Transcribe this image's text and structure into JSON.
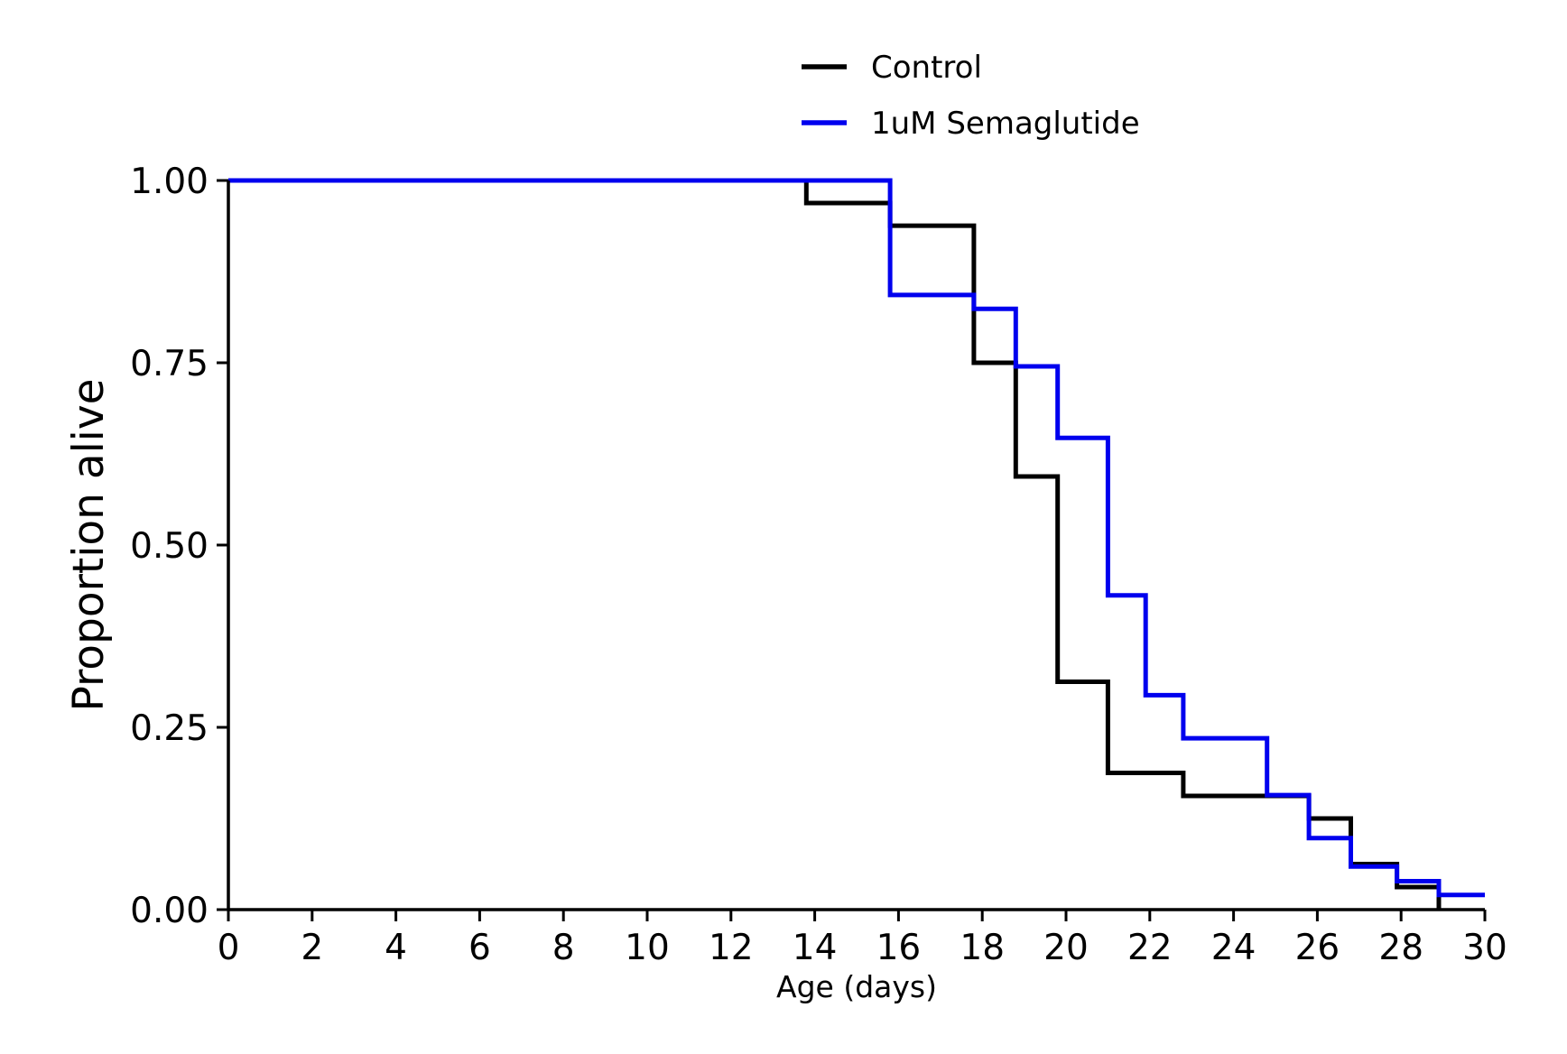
{
  "chart_data": {
    "type": "line",
    "step": true,
    "xlabel": "Age (days)",
    "ylabel": "Proportion alive",
    "xlim": [
      0,
      30
    ],
    "ylim": [
      0,
      1
    ],
    "xticks": [
      0,
      2,
      4,
      6,
      8,
      10,
      12,
      14,
      16,
      18,
      20,
      22,
      24,
      26,
      28,
      30
    ],
    "xtick_labels": [
      "0",
      "2",
      "4",
      "6",
      "8",
      "10",
      "12",
      "14",
      "16",
      "18",
      "20",
      "22",
      "24",
      "26",
      "28",
      "30"
    ],
    "yticks": [
      0,
      0.25,
      0.5,
      0.75,
      1.0
    ],
    "ytick_labels": [
      "0.00",
      "0.25",
      "0.50",
      "0.75",
      "1.00"
    ],
    "grid": false,
    "legend_position": "top-center",
    "series": [
      {
        "name": "Control",
        "color": "#000000",
        "x": [
          0,
          13.8,
          15.8,
          17.8,
          18.8,
          19.8,
          21.0,
          22.8,
          25.8,
          26.8,
          27.9,
          28.9
        ],
        "y": [
          1.0,
          0.969,
          0.938,
          0.75,
          0.594,
          0.3125,
          0.1875,
          0.156,
          0.125,
          0.0625,
          0.031,
          0.0
        ]
      },
      {
        "name": "1uM Semaglutide",
        "color": "#0000ee",
        "x": [
          0,
          15.8,
          17.8,
          18.8,
          19.8,
          21.0,
          21.9,
          22.8,
          24.8,
          25.8,
          26.8,
          27.9,
          28.9,
          30.0
        ],
        "y": [
          1.0,
          0.843,
          0.824,
          0.745,
          0.647,
          0.431,
          0.294,
          0.235,
          0.157,
          0.098,
          0.059,
          0.039,
          0.02,
          0.02
        ]
      }
    ]
  }
}
